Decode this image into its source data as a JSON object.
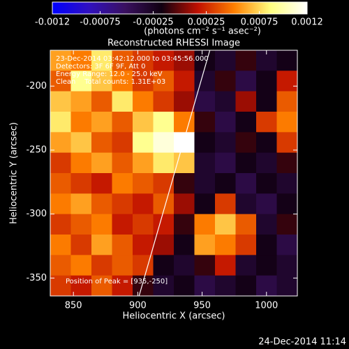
{
  "chart_data": {
    "type": "heatmap",
    "title": "Reconstructed RHESSI Image",
    "colorbar_label": "(photons cm⁻² s⁻¹ asec⁻²)",
    "colorbar_lim": [
      -0.0012,
      0.0012
    ],
    "colorbar_ticks": [
      -0.0012,
      -0.00075,
      -0.00025,
      0.00025,
      0.00075,
      0.0012
    ],
    "colorscale": [
      "#0000ff",
      "#3010c0",
      "#3a1060",
      "#100010",
      "#c01000",
      "#ff8000",
      "#ffff80",
      "#ffffff"
    ],
    "x_label": "Heliocentric X (arcsec)",
    "y_label": "Heliocentric Y (arcsec)",
    "xlim": [
      832,
      1024
    ],
    "ylim": [
      -364,
      -172
    ],
    "xticks": [
      850,
      900,
      950,
      1000
    ],
    "yticks": [
      -200,
      -250,
      -300,
      -350
    ],
    "x": [
      840,
      856,
      872,
      888,
      904,
      920,
      936,
      952,
      968,
      984,
      1000,
      1016
    ],
    "y": [
      -180,
      -196,
      -212,
      -228,
      -244,
      -260,
      -276,
      -292,
      -308,
      -324,
      -340,
      -356
    ],
    "z": [
      [
        0.0006,
        0.0005,
        0.0008,
        0.0004,
        0.0003,
        0.0002,
        0.0001,
        -0.0002,
        -0.0003,
        -0.0001,
        -0.0003,
        -0.0002
      ],
      [
        0.0004,
        0.0009,
        0.0007,
        0.0005,
        0.0003,
        0.0004,
        0.0002,
        -0.0003,
        -0.0001,
        -0.0004,
        -0.0002,
        0.0002
      ],
      [
        0.0007,
        0.0006,
        0.0004,
        0.0008,
        0.0005,
        0.0003,
        0.0001,
        -0.0004,
        -0.0003,
        0.0001,
        -0.0002,
        0.0004
      ],
      [
        0.0008,
        0.0005,
        0.0006,
        0.0004,
        0.0007,
        0.0009,
        0.0005,
        -0.0001,
        -0.0004,
        -0.0002,
        0.0003,
        0.0005
      ],
      [
        0.0006,
        0.0007,
        0.0004,
        0.0003,
        0.0009,
        0.0011,
        0.0012,
        -0.0002,
        -0.0003,
        -0.0001,
        -0.0002,
        0.0003
      ],
      [
        0.0003,
        0.0005,
        0.0006,
        0.0004,
        0.0006,
        0.0008,
        0.0007,
        -0.0003,
        -0.0004,
        -0.0002,
        -0.0003,
        -0.0001
      ],
      [
        0.0004,
        0.0003,
        0.0002,
        0.0005,
        0.0004,
        0.0003,
        -0.0001,
        -0.0003,
        -0.0002,
        -0.0004,
        -0.0002,
        -0.0003
      ],
      [
        0.0005,
        0.0006,
        0.0004,
        0.0003,
        0.0002,
        0.0004,
        0.0001,
        -0.0002,
        0.0003,
        -0.0003,
        -0.0004,
        -0.0002
      ],
      [
        0.0003,
        0.0004,
        0.0005,
        0.0002,
        0.0003,
        0.0002,
        -0.0001,
        0.0005,
        0.0007,
        0.0004,
        -0.0003,
        -0.0001
      ],
      [
        0.0005,
        0.0003,
        0.0006,
        0.0004,
        0.0002,
        0.0001,
        -0.0002,
        0.0006,
        0.0005,
        0.0003,
        -0.0002,
        -0.0004
      ],
      [
        0.0004,
        0.0005,
        0.0003,
        0.0004,
        0.0003,
        -0.0002,
        -0.0003,
        -0.0001,
        0.0002,
        -0.0003,
        -0.0002,
        -0.0003
      ],
      [
        0.0003,
        0.0002,
        0.0004,
        0.0002,
        -0.0001,
        -0.0003,
        -0.0002,
        -0.0004,
        -0.0003,
        -0.0002,
        -0.0004,
        -0.0003
      ]
    ],
    "limb": {
      "color": "#ffffff",
      "x": [
        901,
        956
      ],
      "y": [
        -364,
        -172
      ]
    },
    "annotations": [
      "23-Dec-2014 03:42:12.000 to 03:45:56.000",
      "Detectors: 3F 6F 9F, Att 0",
      "Energy Range: 12.0 - 25.0 keV",
      "Clean    Total counts: 1.31E+03"
    ],
    "peak_label": "Position of Peak = [935,-250]",
    "timestamp": "24-Dec-2014 11:14"
  }
}
